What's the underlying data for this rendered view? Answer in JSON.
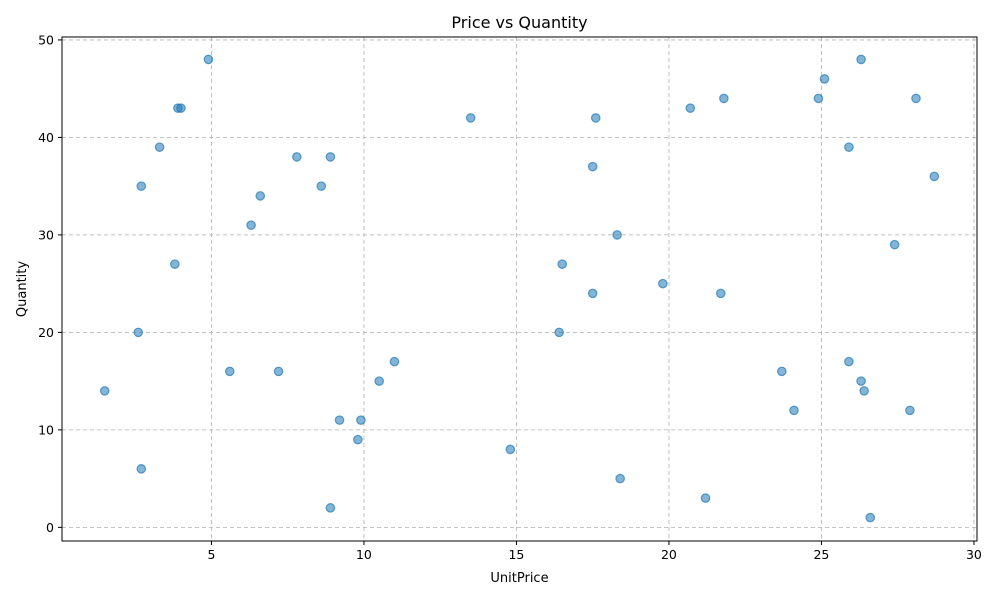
{
  "chart_data": {
    "type": "scatter",
    "title": "Price vs Quantity",
    "xlabel": "UnitPrice",
    "ylabel": "Quantity",
    "xlim": [
      0.1,
      30.1
    ],
    "ylim": [
      -1.4,
      50.3
    ],
    "xticks": [
      5,
      10,
      15,
      20,
      25,
      30
    ],
    "yticks": [
      0,
      10,
      20,
      30,
      40,
      50
    ],
    "grid": true,
    "color": "#1f77b4",
    "points": [
      {
        "x": 4.9,
        "y": 48
      },
      {
        "x": 3.9,
        "y": 43
      },
      {
        "x": 4.0,
        "y": 43
      },
      {
        "x": 3.3,
        "y": 39
      },
      {
        "x": 7.8,
        "y": 38
      },
      {
        "x": 8.9,
        "y": 38
      },
      {
        "x": 2.7,
        "y": 35
      },
      {
        "x": 8.6,
        "y": 35
      },
      {
        "x": 6.6,
        "y": 34
      },
      {
        "x": 6.3,
        "y": 31
      },
      {
        "x": 3.8,
        "y": 27
      },
      {
        "x": 2.6,
        "y": 20
      },
      {
        "x": 5.6,
        "y": 16
      },
      {
        "x": 7.2,
        "y": 16
      },
      {
        "x": 1.5,
        "y": 14
      },
      {
        "x": 2.7,
        "y": 6
      },
      {
        "x": 11.0,
        "y": 17
      },
      {
        "x": 10.5,
        "y": 15
      },
      {
        "x": 9.2,
        "y": 11
      },
      {
        "x": 9.9,
        "y": 11
      },
      {
        "x": 9.8,
        "y": 9
      },
      {
        "x": 8.9,
        "y": 2
      },
      {
        "x": 13.5,
        "y": 42
      },
      {
        "x": 17.6,
        "y": 42
      },
      {
        "x": 17.5,
        "y": 37
      },
      {
        "x": 18.3,
        "y": 30
      },
      {
        "x": 16.5,
        "y": 27
      },
      {
        "x": 17.5,
        "y": 24
      },
      {
        "x": 16.4,
        "y": 20
      },
      {
        "x": 14.8,
        "y": 8
      },
      {
        "x": 18.4,
        "y": 5
      },
      {
        "x": 19.8,
        "y": 25
      },
      {
        "x": 20.7,
        "y": 43
      },
      {
        "x": 21.8,
        "y": 44
      },
      {
        "x": 21.7,
        "y": 24
      },
      {
        "x": 21.2,
        "y": 3
      },
      {
        "x": 23.7,
        "y": 16
      },
      {
        "x": 24.1,
        "y": 12
      },
      {
        "x": 24.9,
        "y": 44
      },
      {
        "x": 25.1,
        "y": 46
      },
      {
        "x": 26.3,
        "y": 48
      },
      {
        "x": 25.9,
        "y": 39
      },
      {
        "x": 25.9,
        "y": 17
      },
      {
        "x": 26.3,
        "y": 15
      },
      {
        "x": 26.4,
        "y": 14
      },
      {
        "x": 26.6,
        "y": 1
      },
      {
        "x": 28.1,
        "y": 44
      },
      {
        "x": 28.7,
        "y": 36
      },
      {
        "x": 27.4,
        "y": 29
      },
      {
        "x": 27.9,
        "y": 12
      }
    ]
  }
}
